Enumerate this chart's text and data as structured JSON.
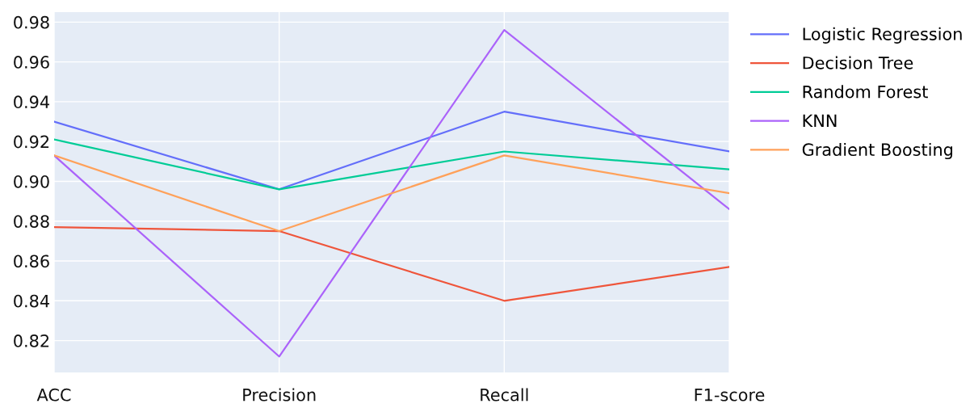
{
  "chart_data": {
    "type": "line",
    "categories": [
      "ACC",
      "Precision",
      "Recall",
      "F1-score"
    ],
    "series": [
      {
        "name": "Logistic Regression",
        "color": "#636efa",
        "values": [
          0.93,
          0.896,
          0.935,
          0.915
        ]
      },
      {
        "name": "Decision Tree",
        "color": "#ef553b",
        "values": [
          0.877,
          0.875,
          0.84,
          0.857
        ]
      },
      {
        "name": "Random Forest",
        "color": "#00cc96",
        "values": [
          0.921,
          0.896,
          0.915,
          0.906
        ]
      },
      {
        "name": "KNN",
        "color": "#ab63fa",
        "values": [
          0.913,
          0.812,
          0.976,
          0.886
        ]
      },
      {
        "name": "Gradient Boosting",
        "color": "#ffa15a",
        "values": [
          0.913,
          0.875,
          0.913,
          0.894
        ]
      }
    ],
    "ylim": [
      0.804,
      0.985
    ],
    "yticks": [
      0.82,
      0.84,
      0.86,
      0.88,
      {
        "value": 0.9,
        "label": "0.90"
      },
      0.92,
      0.94,
      0.96,
      0.98
    ],
    "grid": true,
    "legend": "top right",
    "marker": "none",
    "line_style": "solid"
  }
}
